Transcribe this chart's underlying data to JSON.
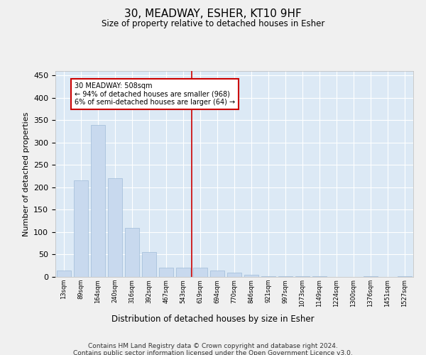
{
  "title": "30, MEADWAY, ESHER, KT10 9HF",
  "subtitle": "Size of property relative to detached houses in Esher",
  "xlabel": "Distribution of detached houses by size in Esher",
  "ylabel": "Number of detached properties",
  "bar_color": "#c8d9ee",
  "bar_edge_color": "#a0bcd8",
  "background_color": "#dce9f5",
  "grid_color": "#ffffff",
  "vline_color": "#cc0000",
  "vline_x": 7.5,
  "annotation_text": "30 MEADWAY: 508sqm\n← 94% of detached houses are smaller (968)\n6% of semi-detached houses are larger (64) →",
  "annotation_box_color": "#cc0000",
  "categories": [
    "13sqm",
    "89sqm",
    "164sqm",
    "240sqm",
    "316sqm",
    "392sqm",
    "467sqm",
    "543sqm",
    "619sqm",
    "694sqm",
    "770sqm",
    "846sqm",
    "921sqm",
    "997sqm",
    "1073sqm",
    "1149sqm",
    "1224sqm",
    "1300sqm",
    "1376sqm",
    "1451sqm",
    "1527sqm"
  ],
  "values": [
    15,
    215,
    340,
    220,
    110,
    55,
    20,
    20,
    20,
    15,
    10,
    5,
    1,
    1,
    1,
    1,
    0,
    0,
    1,
    0,
    1
  ],
  "ylim": [
    0,
    460
  ],
  "yticks": [
    0,
    50,
    100,
    150,
    200,
    250,
    300,
    350,
    400,
    450
  ],
  "footer_text": "Contains HM Land Registry data © Crown copyright and database right 2024.\nContains public sector information licensed under the Open Government Licence v3.0.",
  "figsize": [
    6.0,
    5.0
  ],
  "dpi": 100
}
